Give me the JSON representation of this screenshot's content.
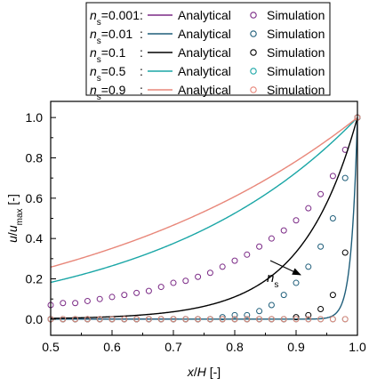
{
  "chart_data": {
    "type": "line",
    "title": "",
    "xlabel": {
      "var": "x",
      "sep": "/",
      "var2": "H",
      "unit": " [-]"
    },
    "ylabel": {
      "var": "u",
      "sep": "/",
      "var2": "u",
      "sub": "max",
      "unit": " [-]"
    },
    "xlim": [
      0.5,
      1.0
    ],
    "ylim": [
      -0.08,
      1.08
    ],
    "x_ticks": [
      "0.5",
      "0.6",
      "0.7",
      "0.8",
      "0.9",
      "1.0"
    ],
    "y_ticks": [
      "0.0",
      "0.2",
      "0.4",
      "0.6",
      "0.8",
      "1.0"
    ],
    "grid": false,
    "legend_placement": "top, above plot",
    "legend": {
      "var": "n",
      "sub": "s",
      "line_label": "Analytical",
      "marker_label": "Simulation"
    },
    "annotation": {
      "var": "n",
      "sub": "s"
    },
    "series": [
      {
        "n": "0.001",
        "color": "#7b2a86",
        "sim_x": [
          0.5,
          0.52,
          0.54,
          0.56,
          0.58,
          0.6,
          0.62,
          0.64,
          0.66,
          0.68,
          0.7,
          0.72,
          0.74,
          0.76,
          0.78,
          0.8,
          0.82,
          0.84,
          0.86,
          0.88,
          0.9,
          0.92,
          0.94,
          0.96,
          0.98,
          1.0
        ],
        "sim_y": [
          0.07,
          0.08,
          0.08,
          0.09,
          0.1,
          0.11,
          0.12,
          0.13,
          0.14,
          0.16,
          0.18,
          0.19,
          0.21,
          0.23,
          0.26,
          0.29,
          0.32,
          0.36,
          0.4,
          0.44,
          0.49,
          0.55,
          0.62,
          0.71,
          0.84,
          1.0
        ]
      },
      {
        "n": "0.01",
        "color": "#1f5e7a",
        "sim_x": [
          0.5,
          0.52,
          0.54,
          0.56,
          0.58,
          0.6,
          0.62,
          0.64,
          0.66,
          0.68,
          0.7,
          0.72,
          0.74,
          0.76,
          0.78,
          0.8,
          0.82,
          0.84,
          0.86,
          0.88,
          0.9,
          0.92,
          0.94,
          0.96,
          0.98,
          1.0
        ],
        "sim_y": [
          0.0,
          0.0,
          0.0,
          0.0,
          0.0,
          0.0,
          0.0,
          0.0,
          0.0,
          0.0,
          0.0,
          0.0,
          0.0,
          0.0,
          0.01,
          0.02,
          0.02,
          0.04,
          0.07,
          0.12,
          0.18,
          0.26,
          0.36,
          0.5,
          0.7,
          1.0
        ]
      },
      {
        "n": "0.1",
        "color": "#000000",
        "sim_x": [
          0.5,
          0.52,
          0.54,
          0.56,
          0.58,
          0.6,
          0.62,
          0.64,
          0.66,
          0.68,
          0.7,
          0.72,
          0.74,
          0.76,
          0.78,
          0.8,
          0.82,
          0.84,
          0.86,
          0.88,
          0.9,
          0.92,
          0.94,
          0.96,
          0.98,
          1.0
        ],
        "sim_y": [
          0,
          0,
          0,
          0,
          0,
          0,
          0,
          0,
          0,
          0,
          0,
          0,
          0,
          0,
          0,
          0,
          0,
          0,
          0,
          0,
          0.01,
          0.02,
          0.05,
          0.12,
          0.33,
          1.0
        ]
      },
      {
        "n": "0.5",
        "color": "#1aa6a6",
        "sim_x": [
          0.5,
          0.52,
          0.54,
          0.56,
          0.58,
          0.6,
          0.62,
          0.64,
          0.66,
          0.68,
          0.7,
          0.72,
          0.74,
          0.76,
          0.78,
          0.8,
          0.82,
          0.84,
          0.86,
          0.88,
          0.9,
          0.92,
          0.94,
          0.96,
          0.98,
          1.0
        ],
        "sim_y": [
          0,
          0,
          0,
          0,
          0,
          0,
          0,
          0,
          0,
          0,
          0,
          0,
          0,
          0,
          0,
          0,
          0,
          0,
          0,
          0,
          0,
          0,
          0,
          0,
          0,
          1.0
        ]
      },
      {
        "n": "0.9",
        "color": "#e8877a",
        "sim_x": [
          0.5,
          0.52,
          0.54,
          0.56,
          0.58,
          0.6,
          0.62,
          0.64,
          0.66,
          0.68,
          0.7,
          0.72,
          0.74,
          0.76,
          0.78,
          0.8,
          0.82,
          0.84,
          0.86,
          0.88,
          0.9,
          0.92,
          0.94,
          0.96,
          0.98,
          1.0
        ],
        "sim_y": [
          0,
          0,
          0,
          0,
          0,
          0,
          0,
          0,
          0,
          0,
          0,
          0,
          0,
          0,
          0,
          0,
          0,
          0,
          0,
          0,
          0,
          0,
          0,
          0,
          0,
          1.0
        ]
      }
    ]
  }
}
